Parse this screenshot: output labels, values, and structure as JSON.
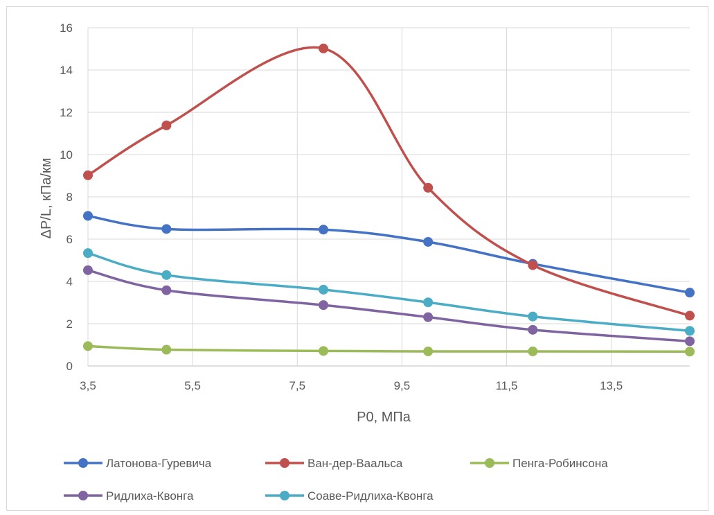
{
  "chart_data": {
    "type": "line",
    "smooth": true,
    "title": "",
    "xlabel": "P0, МПа",
    "ylabel": "ΔP/L, кПа/км",
    "xlim": [
      3.5,
      15
    ],
    "ylim": [
      0,
      16
    ],
    "x_ticks": [
      "3,5",
      "5,5",
      "7,5",
      "9,5",
      "11,5",
      "13,5"
    ],
    "x_tick_values": [
      3.5,
      5.5,
      7.5,
      9.5,
      11.5,
      13.5
    ],
    "y_ticks": [
      "0",
      "2",
      "4",
      "6",
      "8",
      "10",
      "12",
      "14",
      "16"
    ],
    "y_tick_values": [
      0,
      2,
      4,
      6,
      8,
      10,
      12,
      14,
      16
    ],
    "grid": true,
    "legend_position": "bottom",
    "x": [
      3.5,
      5,
      8,
      10,
      12,
      15
    ],
    "series": [
      {
        "name": "Латонова-Гуревича",
        "color": "#4472c4",
        "values": [
          7.1,
          6.48,
          6.45,
          5.87,
          4.83,
          3.47
        ]
      },
      {
        "name": "Ван-дер-Ваальса",
        "color": "#c0504d",
        "values": [
          9.02,
          11.38,
          15.02,
          8.43,
          4.77,
          2.38
        ]
      },
      {
        "name": "Пенга-Робинсона",
        "color": "#9bbb59",
        "values": [
          0.94,
          0.77,
          0.71,
          0.69,
          0.69,
          0.68
        ]
      },
      {
        "name": "Ридлиха-Квонга",
        "color": "#8064a2",
        "values": [
          4.53,
          3.58,
          2.88,
          2.31,
          1.71,
          1.17
        ]
      },
      {
        "name": "Соаве-Ридлиха-Квонга",
        "color": "#4bacc6",
        "values": [
          5.34,
          4.3,
          3.61,
          3.01,
          2.34,
          1.66
        ]
      }
    ]
  }
}
